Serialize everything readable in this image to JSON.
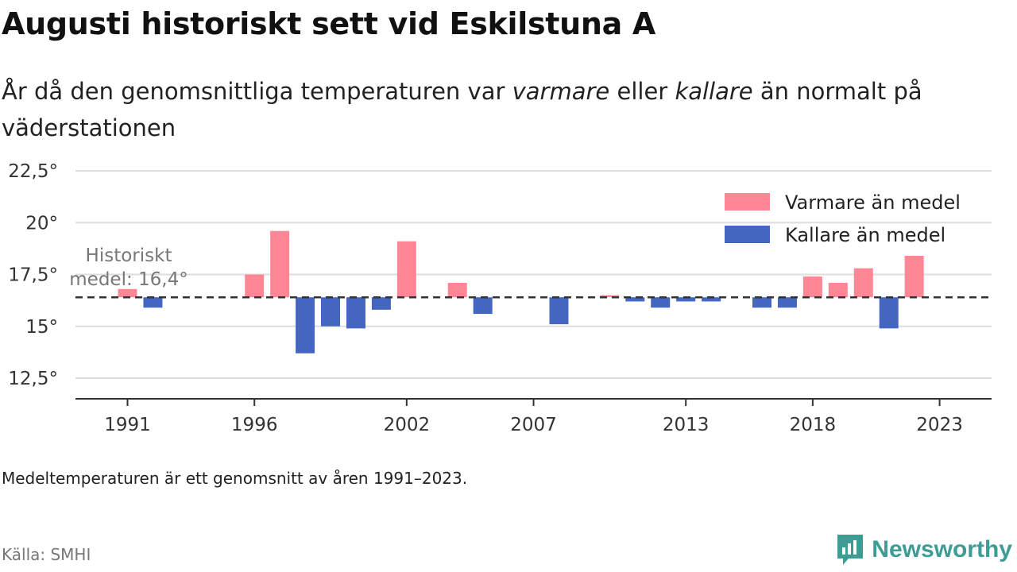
{
  "title": "Augusti historiskt sett vid Eskilstuna A",
  "subtitle": {
    "part1": "År då den genomsnittliga temperaturen var ",
    "warm_word": "varmare",
    "part2": " eller ",
    "cold_word": "kallare",
    "part3": " än normalt på väderstationen"
  },
  "note": "Medeltemperaturen är ett genomsnitt av åren 1991–2023.",
  "source": "Källa: SMHI",
  "brand": {
    "name": "Newsworthy",
    "icon": "newsworthy-logo-icon"
  },
  "colors": {
    "warm": "#ff8795",
    "cold": "#4466c1",
    "reference": "#333333",
    "grid": "#dddddd"
  },
  "chart_data": {
    "type": "bar",
    "baseline": 16.4,
    "reference_label": [
      "Historiskt",
      "medel: 16,4°"
    ],
    "x": [
      1991,
      1992,
      1996,
      1997,
      1998,
      1999,
      2000,
      2001,
      2002,
      2004,
      2005,
      2008,
      2010,
      2011,
      2012,
      2013,
      2014,
      2016,
      2017,
      2018,
      2019,
      2020,
      2021,
      2022
    ],
    "values": [
      16.8,
      15.9,
      17.5,
      19.6,
      13.7,
      15.0,
      14.9,
      15.8,
      19.1,
      17.1,
      15.6,
      15.1,
      16.5,
      16.2,
      15.9,
      16.2,
      16.2,
      15.9,
      15.9,
      17.4,
      17.1,
      17.8,
      14.9,
      18.4
    ],
    "xlim": [
      1990,
      2025
    ],
    "ylim": [
      11.5,
      22.5
    ],
    "y_ticks": [
      12.5,
      15,
      17.5,
      20,
      22.5
    ],
    "y_tick_labels": [
      "12,5°",
      "15°",
      "17,5°",
      "20°",
      "22,5°"
    ],
    "x_ticks": [
      1991,
      1996,
      2002,
      2007,
      2013,
      2018,
      2023
    ],
    "x_tick_labels": [
      "1991",
      "1996",
      "2002",
      "2007",
      "2013",
      "2018",
      "2023"
    ],
    "legend": {
      "position": "top-right",
      "items": [
        {
          "label": "Varmare än medel",
          "color": "#ff8795"
        },
        {
          "label": "Kallare än medel",
          "color": "#4466c1"
        }
      ]
    },
    "grid": true
  }
}
